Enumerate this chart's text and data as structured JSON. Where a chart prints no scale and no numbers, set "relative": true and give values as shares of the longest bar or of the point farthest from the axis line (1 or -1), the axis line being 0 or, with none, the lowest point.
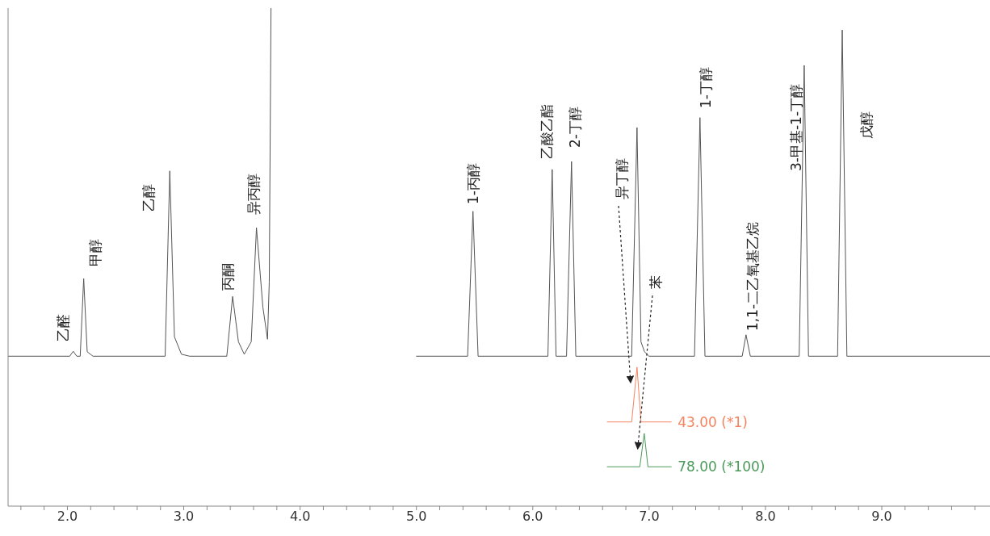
{
  "chart_data": {
    "type": "line",
    "relative": true,
    "xlim": [
      1.49,
      9.93
    ],
    "xticks": [
      {
        "value": 1.6,
        "label": null
      },
      {
        "value": 1.8,
        "label": null
      },
      {
        "value": 2,
        "label": "2.0"
      },
      {
        "value": 2.2,
        "label": null
      },
      {
        "value": 2.4,
        "label": null
      },
      {
        "value": 2.6,
        "label": null
      },
      {
        "value": 2.8,
        "label": null
      },
      {
        "value": 3,
        "label": "3.0"
      },
      {
        "value": 3.2,
        "label": null
      },
      {
        "value": 3.4,
        "label": null
      },
      {
        "value": 3.6,
        "label": null
      },
      {
        "value": 3.8,
        "label": null
      },
      {
        "value": 4,
        "label": "4.0"
      },
      {
        "value": 4.2,
        "label": null
      },
      {
        "value": 4.4,
        "label": null
      },
      {
        "value": 4.6,
        "label": null
      },
      {
        "value": 4.8,
        "label": null
      },
      {
        "value": 5,
        "label": "5.0"
      },
      {
        "value": 5.2,
        "label": null
      },
      {
        "value": 5.4,
        "label": null
      },
      {
        "value": 5.6,
        "label": null
      },
      {
        "value": 5.8,
        "label": null
      },
      {
        "value": 6,
        "label": "6.0"
      },
      {
        "value": 6.2,
        "label": null
      },
      {
        "value": 6.4,
        "label": null
      },
      {
        "value": 6.6,
        "label": null
      },
      {
        "value": 6.8,
        "label": null
      },
      {
        "value": 7,
        "label": "7.0"
      },
      {
        "value": 7.2,
        "label": null
      },
      {
        "value": 7.4,
        "label": null
      },
      {
        "value": 7.6,
        "label": null
      },
      {
        "value": 7.8,
        "label": null
      },
      {
        "value": 8,
        "label": "8.0"
      },
      {
        "value": 8.2,
        "label": null
      },
      {
        "value": 8.4,
        "label": null
      },
      {
        "value": 8.6,
        "label": null
      },
      {
        "value": 8.8,
        "label": null
      },
      {
        "value": 9,
        "label": "9.0"
      },
      {
        "value": 9.2,
        "label": null
      },
      {
        "value": 9.4,
        "label": null
      },
      {
        "value": 9.6,
        "label": null
      },
      {
        "value": 9.8,
        "label": null
      }
    ],
    "marker": "none",
    "line_style": "solid",
    "series": [
      {
        "color": "#555555",
        "x": [
          1.49,
          2.02,
          2.05,
          2.08,
          2.11,
          2.14,
          2.17,
          2.22,
          2.84,
          2.88,
          2.92,
          2.98,
          3.05,
          3.37,
          3.42,
          3.47,
          3.52,
          3.58,
          3.625,
          3.68,
          3.72,
          3.735,
          3.75,
          4.4,
          5.0,
          5.44,
          5.486,
          5.53,
          6.13,
          6.167,
          6.2,
          6.29,
          6.333,
          6.37,
          6.85,
          6.896,
          6.93,
          6.96,
          7.0,
          7.39,
          7.437,
          7.48,
          7.8,
          7.833,
          7.87,
          8.29,
          8.333,
          8.37,
          8.62,
          8.66,
          8.7,
          9.93
        ],
        "values": [
          0.301,
          0.301,
          0.311,
          0.301,
          0.301,
          0.457,
          0.31,
          0.301,
          0.301,
          0.673,
          0.34,
          0.305,
          0.301,
          0.301,
          0.421,
          0.33,
          0.305,
          0.33,
          0.559,
          0.4,
          0.335,
          0.45,
          1,
          null,
          0.301,
          0.301,
          0.592,
          0.301,
          0.301,
          0.676,
          0.301,
          0.301,
          0.692,
          0.301,
          0.301,
          0.76,
          0.33,
          0.31,
          0.301,
          0.301,
          0.78,
          0.301,
          0.301,
          0.344,
          0.301,
          0.301,
          0.885,
          0.301,
          0.301,
          0.956,
          0.301,
          0.301
        ]
      },
      {
        "name": "43.00 (*1)",
        "color": "#f4845f",
        "x": [
          6.64,
          6.85,
          6.896,
          6.93,
          7.19
        ],
        "values": [
          0.169,
          0.169,
          0.279,
          0.169,
          0.169
        ]
      },
      {
        "name": "78.00 (*100)",
        "color": "#4a9a5a",
        "x": [
          6.64,
          6.92,
          6.958,
          6.99,
          7.19
        ],
        "values": [
          0.079,
          0.079,
          0.146,
          0.079,
          0.079
        ]
      }
    ],
    "annotations": [
      "乙醛",
      "甲醇",
      "乙醇",
      "丙酮",
      "异丙醇",
      "1-丙醇",
      "乙酸乙酯",
      "2-丁醇",
      "异丁醇",
      "1-丁醇",
      "苯",
      "1,1-二乙氧基乙烷",
      "3-甲基-1-丁醇",
      "戊醇"
    ]
  }
}
